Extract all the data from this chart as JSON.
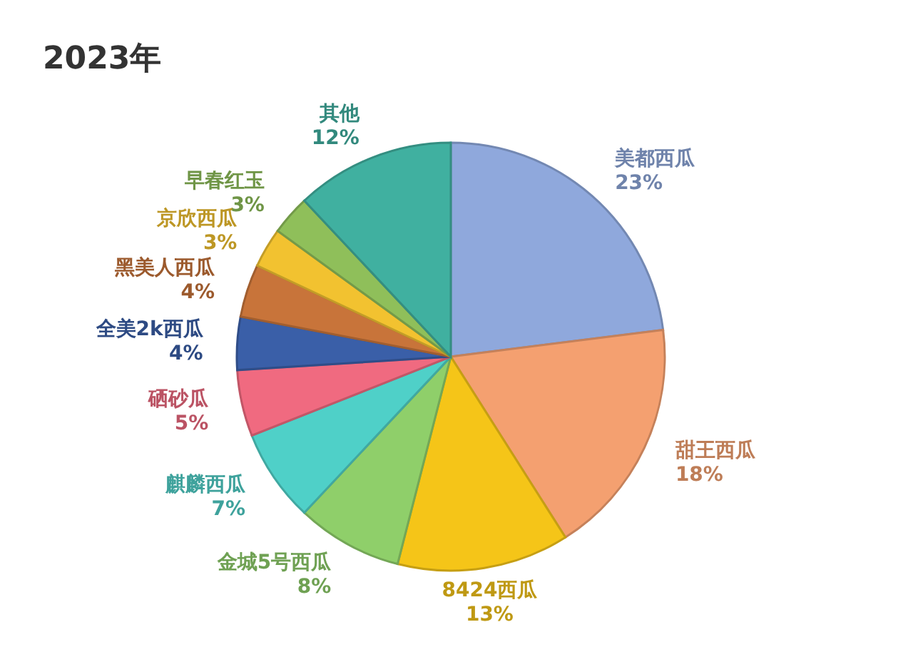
{
  "chart_data": {
    "type": "pie",
    "title": "2023年",
    "categories": [
      "美都西瓜",
      "甜王西瓜",
      "8424西瓜",
      "金城5号西瓜",
      "麒麟西瓜",
      "硒砂瓜",
      "全美2k西瓜",
      "黑美人西瓜",
      "京欣西瓜",
      "早春红玉",
      "其他"
    ],
    "values": [
      23,
      18,
      13,
      8,
      7,
      5,
      4,
      4,
      3,
      3,
      12
    ],
    "colors": [
      "#8fa8dc",
      "#f4a070",
      "#f5c518",
      "#8fcf6a",
      "#4fd0c8",
      "#f06a80",
      "#3a5fa8",
      "#c8743a",
      "#f2c230",
      "#8fbf5a",
      "#40b0a0"
    ],
    "value_labels": [
      "23%",
      "18%",
      "13%",
      "8%",
      "7%",
      "5%",
      "4%",
      "4%",
      "3%",
      "3%",
      "12%"
    ]
  }
}
